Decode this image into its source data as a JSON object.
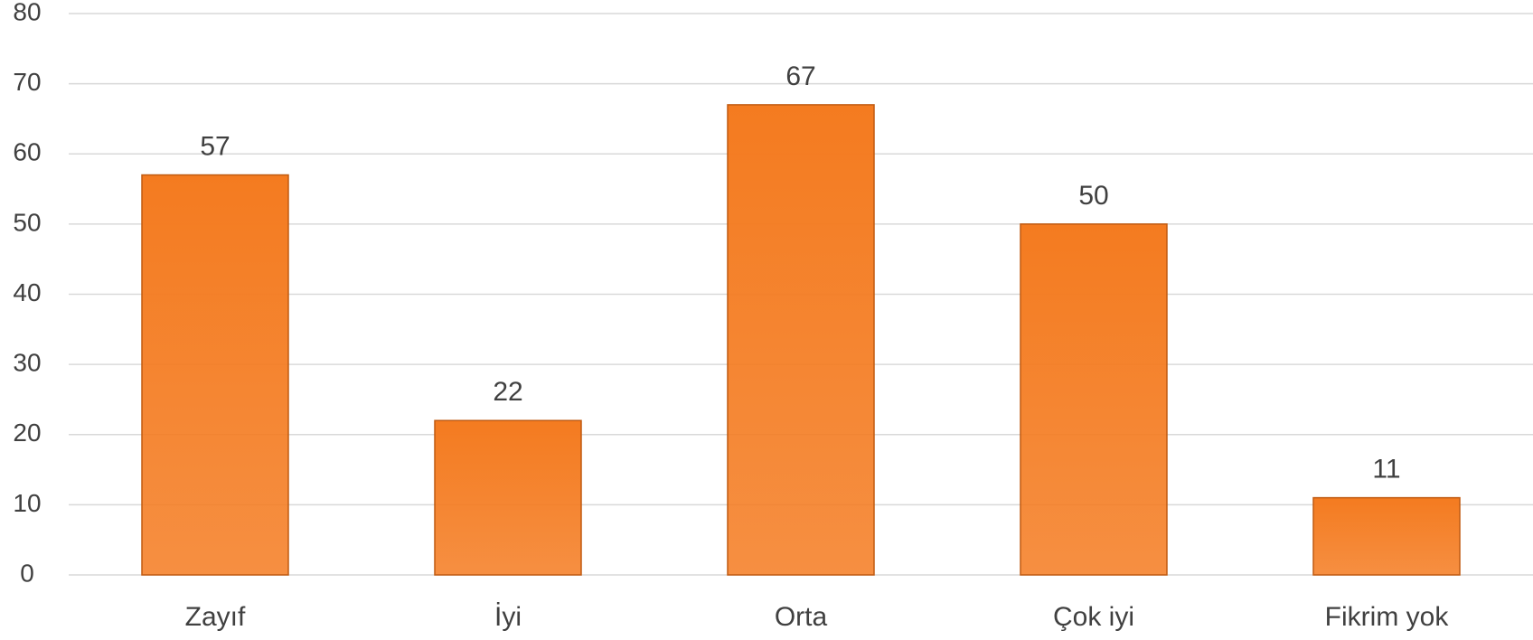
{
  "chart_data": {
    "type": "bar",
    "categories": [
      "Zayıf",
      "İyi",
      "Orta",
      "Çok iyi",
      "Fikrim yok"
    ],
    "values": [
      57,
      22,
      67,
      50,
      11
    ],
    "color": "#f47b20",
    "ylim": [
      0,
      80
    ],
    "yticks": [
      0,
      10,
      20,
      30,
      40,
      50,
      60,
      70,
      80
    ],
    "grid": true
  }
}
